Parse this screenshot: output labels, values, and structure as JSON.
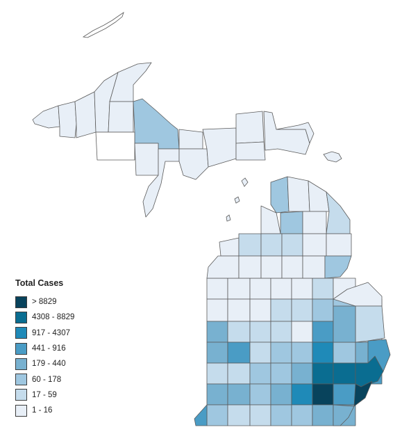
{
  "legend": {
    "title": "Total Cases",
    "classes": [
      {
        "label": "> 8829",
        "color": "#08435c"
      },
      {
        "label": "4308 - 8829",
        "color": "#0a6d91"
      },
      {
        "label": "917 - 4307",
        "color": "#1f8ab8"
      },
      {
        "label": "441 - 916",
        "color": "#4a9cc5"
      },
      {
        "label": "179 - 440",
        "color": "#78b1d0"
      },
      {
        "label": "60 - 178",
        "color": "#9fc7e0"
      },
      {
        "label": "17 - 59",
        "color": "#c5dcec"
      },
      {
        "label": "1 - 16",
        "color": "#e8eff7"
      }
    ]
  },
  "map_data": {
    "subject": "Michigan counties",
    "case_class_counts": {
      "> 8829": 1,
      "4308 - 8829": 2,
      "917 - 4307": 4,
      "441 - 916": 4,
      "179 - 440": 16,
      "60 - 178": 16,
      "17 - 59": 13,
      "1 - 16": 26
    },
    "no_data_color": "#ffffff"
  }
}
